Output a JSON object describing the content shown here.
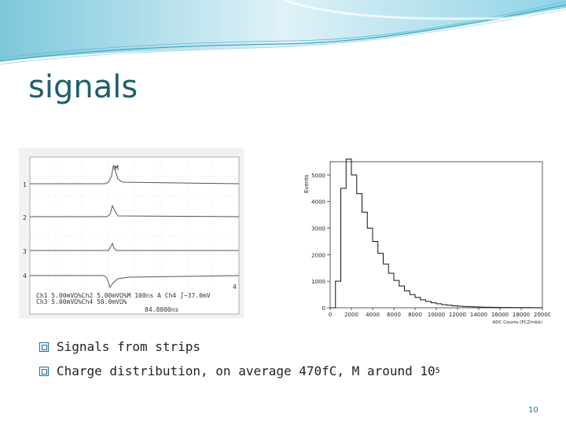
{
  "slide": {
    "title": "signals",
    "bullets": [
      {
        "text": "Signals from strips"
      },
      {
        "text": "Charge distribution, on average 470fC, M around 10",
        "sup": "5"
      }
    ],
    "page_number": "10"
  },
  "scope": {
    "trigger_marker": "M",
    "channels": [
      "1",
      "2",
      "3",
      "4"
    ],
    "readout_line1": "Ch1  5.00mVΩ%Ch2  5.00mVΩ%M 100ns  A  Ch4  ∫−37.0mV",
    "readout_line2": "Ch3  5.00mVΩ%Ch4  50.0mVΩ%",
    "readout_line3": "84.8000ns",
    "ch4_marker": "4"
  },
  "chart_data": {
    "type": "histogram",
    "xlabel": "ADC Counts (FCZ/mbk)",
    "ylabel": "Events",
    "xticks": [
      "0",
      "2000",
      "4000",
      "6000",
      "8000",
      "10000",
      "12000",
      "14000",
      "16000",
      "18000",
      "20000"
    ],
    "yticks": [
      "0",
      "1000",
      "2000",
      "3000",
      "4000",
      "5000"
    ],
    "xlim": [
      0,
      20000
    ],
    "ylim": [
      0,
      5500
    ],
    "x": [
      0,
      500,
      1000,
      1500,
      2000,
      2500,
      3000,
      3500,
      4000,
      4500,
      5000,
      5500,
      6000,
      6500,
      7000,
      7500,
      8000,
      8500,
      9000,
      9500,
      10000,
      10500,
      11000,
      11500,
      12000,
      12500,
      13000,
      13500,
      14000,
      14500,
      15000,
      15500,
      16000,
      16500,
      17000,
      17500,
      18000,
      18500,
      19000,
      19500
    ],
    "values": [
      0,
      1000,
      4500,
      5600,
      5000,
      4300,
      3600,
      3000,
      2500,
      2050,
      1650,
      1300,
      1030,
      820,
      640,
      500,
      390,
      300,
      240,
      190,
      150,
      120,
      95,
      75,
      60,
      48,
      40,
      32,
      26,
      22,
      18,
      15,
      12,
      10,
      9,
      8,
      7,
      6,
      5,
      5
    ]
  }
}
